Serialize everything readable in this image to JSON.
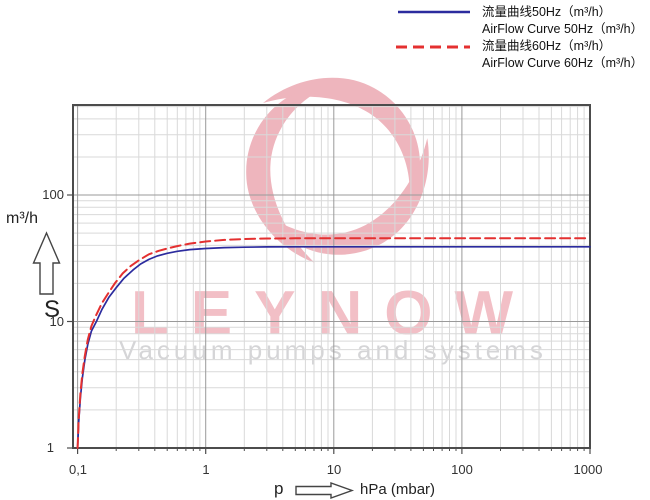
{
  "legend": {
    "entries": [
      {
        "label_cn": "流量曲线50Hz（m³/h）",
        "label_en": "AirFlow Curve 50Hz（m³/h）",
        "color": "#2b2b9e",
        "style": "solid"
      },
      {
        "label_cn": "流量曲线60Hz（m³/h）",
        "label_en": "AirFlow Curve 60Hz（m³/h）",
        "color": "#e43030",
        "style": "dashed"
      }
    ]
  },
  "axes": {
    "y_unit": "m³/h",
    "y_symbol": "S",
    "x_symbol": "p",
    "x_unit_label": "hPa (mbar)",
    "x_tick_labels": [
      "0,1",
      "1",
      "10",
      "100",
      "1000"
    ],
    "y_tick_labels": [
      "1",
      "10",
      "100"
    ]
  },
  "watermark": {
    "brand": "LEYNOW",
    "tagline": "Vacuum pumps and systems",
    "logo_color": "#eeb5bd",
    "brand_color": "#f2bfc6",
    "tagline_color": "#d5d5d7"
  },
  "colors": {
    "grid_minor": "#d9d9d9",
    "grid_major": "#9a9a9a",
    "frame": "#4c4c4c",
    "curve_50hz": "#2b2b9e",
    "curve_60hz": "#e43030"
  },
  "chart_data": {
    "type": "line",
    "x_scale": "log",
    "y_scale": "log",
    "xlabel": "p hPa (mbar)",
    "ylabel": "S m³/h",
    "x_range": [
      0.092,
      1000
    ],
    "y_range": [
      1,
      515
    ],
    "x_major_ticks": [
      0.1,
      1,
      10,
      100,
      1000
    ],
    "y_major_ticks": [
      1,
      10,
      100
    ],
    "grid": "log major+minor, both axes",
    "legend_position": "top-right",
    "series": [
      {
        "name": "AirFlow Curve 50Hz (m³/h)",
        "color": "#2b2b9e",
        "dash": false,
        "width": 1.7,
        "points": [
          [
            0.1,
            1
          ],
          [
            0.102,
            1.6
          ],
          [
            0.105,
            2.5
          ],
          [
            0.109,
            3.6
          ],
          [
            0.114,
            5.0
          ],
          [
            0.12,
            6.6
          ],
          [
            0.128,
            8.4
          ],
          [
            0.14,
            10
          ],
          [
            0.155,
            12.5
          ],
          [
            0.175,
            15.5
          ],
          [
            0.2,
            18.5
          ],
          [
            0.23,
            22
          ],
          [
            0.27,
            25.5
          ],
          [
            0.31,
            28.5
          ],
          [
            0.36,
            31
          ],
          [
            0.42,
            33
          ],
          [
            0.5,
            34.6
          ],
          [
            0.6,
            35.9
          ],
          [
            0.75,
            37
          ],
          [
            1,
            37.8
          ],
          [
            1.4,
            38.4
          ],
          [
            2,
            38.7
          ],
          [
            3,
            38.9
          ],
          [
            5,
            39
          ],
          [
            10,
            39
          ],
          [
            100,
            39
          ],
          [
            1000,
            39
          ]
        ]
      },
      {
        "name": "AirFlow Curve 60Hz (m³/h)",
        "color": "#e43030",
        "dash": true,
        "width": 2,
        "points": [
          [
            0.1,
            1
          ],
          [
            0.102,
            1.7
          ],
          [
            0.105,
            2.7
          ],
          [
            0.109,
            3.9
          ],
          [
            0.114,
            5.4
          ],
          [
            0.12,
            7.2
          ],
          [
            0.128,
            9.2
          ],
          [
            0.138,
            11
          ],
          [
            0.155,
            14
          ],
          [
            0.175,
            17
          ],
          [
            0.195,
            20
          ],
          [
            0.225,
            24
          ],
          [
            0.26,
            27.5
          ],
          [
            0.3,
            30.5
          ],
          [
            0.36,
            34
          ],
          [
            0.43,
            36.2
          ],
          [
            0.5,
            37.8
          ],
          [
            0.6,
            39.5
          ],
          [
            0.75,
            41.3
          ],
          [
            1,
            42.9
          ],
          [
            1.4,
            44.2
          ],
          [
            2,
            44.9
          ],
          [
            3,
            45.3
          ],
          [
            5,
            45.5
          ],
          [
            10,
            45.6
          ],
          [
            100,
            45.6
          ],
          [
            1000,
            45.6
          ]
        ]
      }
    ]
  }
}
